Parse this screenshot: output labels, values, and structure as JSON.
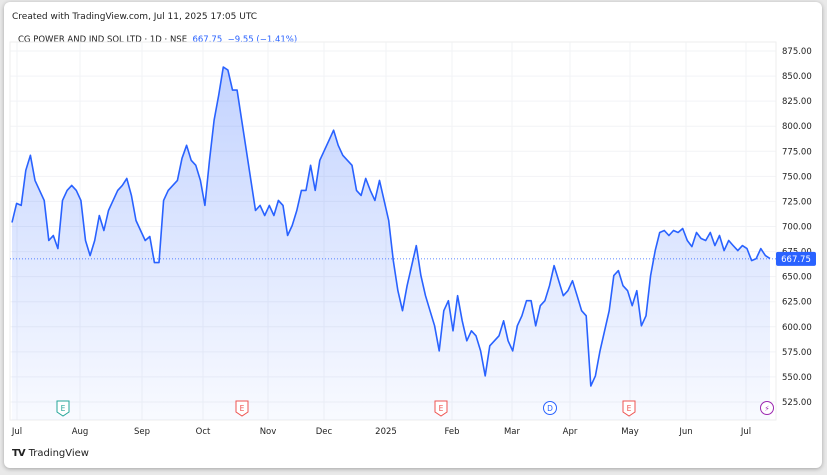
{
  "header": {
    "credit": "Created with TradingView.com, Jul 11, 2025 17:05 UTC",
    "symbol": "CG POWER AND IND SOL LTD · 1D · NSE",
    "price": "667.75",
    "change": "−9.55 (−1.41%)"
  },
  "footer": {
    "brand": "TradingView"
  },
  "colors": {
    "line": "#2962ff",
    "up_event": "#26a69a",
    "down_event": "#ef5350",
    "dividend": "#2962ff",
    "split": "#9c27b0"
  },
  "chart_data": {
    "type": "area",
    "title": "CG POWER AND IND SOL LTD · 1D · NSE",
    "ylim": [
      525,
      875
    ],
    "yticks": [
      "875.00",
      "850.00",
      "825.00",
      "800.00",
      "775.00",
      "750.00",
      "725.00",
      "700.00",
      "675.00",
      "650.00",
      "625.00",
      "600.00",
      "575.00",
      "550.00",
      "525.00"
    ],
    "xticks": [
      "Jul",
      "Aug",
      "Sep",
      "Oct",
      "Nov",
      "Dec",
      "2025",
      "Feb",
      "Mar",
      "Apr",
      "May",
      "Jun",
      "Jul"
    ],
    "last_price_label": "667.75",
    "last_price": 667.75,
    "events": [
      "E",
      "E",
      "E",
      "D",
      "E",
      "⚡"
    ],
    "values": [
      704,
      723,
      721,
      756,
      771,
      746,
      736,
      726,
      686,
      691,
      678,
      726,
      736,
      741,
      736,
      726,
      686,
      671,
      686,
      711,
      696,
      716,
      726,
      736,
      741,
      748,
      731,
      706,
      696,
      686,
      690,
      664,
      664,
      726,
      736,
      741,
      746,
      768,
      781,
      766,
      761,
      746,
      721,
      766,
      806,
      831,
      859,
      856,
      836,
      836,
      806,
      776,
      746,
      716,
      721,
      711,
      721,
      711,
      726,
      721,
      691,
      701,
      716,
      736,
      736,
      761,
      736,
      766,
      776,
      786,
      796,
      781,
      771,
      766,
      761,
      736,
      731,
      748,
      736,
      726,
      746,
      726,
      706,
      666,
      636,
      616,
      641,
      661,
      681,
      651,
      631,
      616,
      601,
      576,
      616,
      626,
      596,
      631,
      606,
      586,
      596,
      591,
      576,
      551,
      581,
      586,
      591,
      606,
      586,
      576,
      601,
      611,
      626,
      626,
      601,
      621,
      626,
      641,
      661,
      646,
      631,
      636,
      646,
      631,
      616,
      611,
      541,
      551,
      576,
      596,
      616,
      651,
      656,
      641,
      636,
      621,
      636,
      601,
      611,
      651,
      676,
      694,
      696,
      691,
      696,
      694,
      698,
      686,
      680,
      694,
      688,
      686,
      694,
      681,
      691,
      676,
      686,
      681,
      676,
      681,
      678,
      666,
      668,
      678,
      671,
      668
    ]
  }
}
